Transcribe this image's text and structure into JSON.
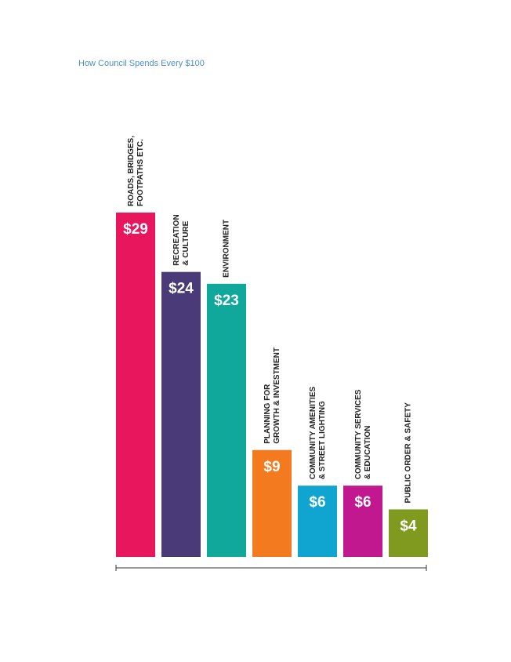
{
  "chart_data": {
    "type": "bar",
    "title": "How Council Spends Every $100",
    "categories": [
      "ROADS, BRIDGES,\nFOOTPATHS ETC.",
      "RECREATION\n& CULTURE",
      "ENVIRONMENT",
      "PLANNING FOR\nGROWTH & INVESTMENT",
      "COMMUNITY AMENITIES\n& STREET LIGHTING",
      "COMMUNITY SERVICES\n& EDUCATION",
      "PUBLIC ORDER & SAFETY"
    ],
    "values": [
      29,
      24,
      23,
      9,
      6,
      6,
      4
    ],
    "value_labels": [
      "$29",
      "$24",
      "$23",
      "$9",
      "$6",
      "$6",
      "$4"
    ],
    "colors": [
      "#e8175d",
      "#4b3a78",
      "#0fa89a",
      "#f47a20",
      "#0fa5d0",
      "#c2188f",
      "#7f9a1f"
    ]
  }
}
